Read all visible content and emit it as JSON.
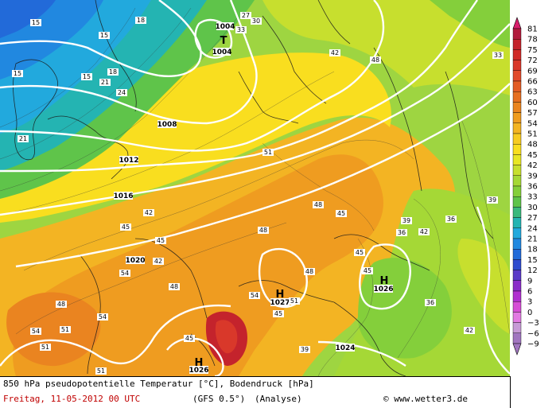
{
  "footer": {
    "title": "850 hPa pseudopotentielle Temperatur [°C], Bodendruck [hPa]",
    "date": "Freitag, 11-05-2012  00 UTC",
    "model": "(GFS 0.5°)",
    "mode": "(Analyse)",
    "credit": "© www.wetter3.de"
  },
  "legend": {
    "values": [
      81,
      78,
      75,
      72,
      69,
      66,
      63,
      60,
      57,
      54,
      51,
      48,
      45,
      42,
      39,
      36,
      33,
      30,
      27,
      24,
      21,
      18,
      15,
      12,
      9,
      6,
      3,
      0,
      -3,
      -6,
      -9
    ],
    "colors": [
      "#d81f6c",
      "#b11b3c",
      "#c4232c",
      "#d02a28",
      "#d9382a",
      "#e14a2b",
      "#e35c26",
      "#e66f22",
      "#ea8420",
      "#ef9c20",
      "#f3b423",
      "#f7cb22",
      "#f9de1f",
      "#e8e624",
      "#c7df2e",
      "#a5d836",
      "#84cf3b",
      "#5fc44a",
      "#3ab97c",
      "#24b4b2",
      "#22a9dd",
      "#2188e0",
      "#226ad9",
      "#2f4ccf",
      "#5a3ac8",
      "#8a2dc9",
      "#b030d0",
      "#d64ed6",
      "#e27ae2",
      "#c79ad6",
      "#a176c0"
    ]
  },
  "isobars": [
    "1004",
    "1004",
    "1008",
    "1012",
    "1016",
    "1020",
    "1024",
    "1026",
    "1027",
    "1026"
  ],
  "highs": [
    "H",
    "H",
    "H"
  ],
  "lows": [
    "T"
  ],
  "temp_labels": [
    "15",
    "15",
    "15",
    "15",
    "18",
    "18",
    "21",
    "21",
    "24",
    "27",
    "30",
    "33",
    "33",
    "42",
    "42",
    "42",
    "45",
    "45",
    "45",
    "45",
    "45",
    "45",
    "48",
    "48",
    "48",
    "48",
    "48",
    "51",
    "51",
    "51",
    "51",
    "51",
    "54",
    "54",
    "54",
    "54",
    "39",
    "39",
    "39",
    "36",
    "36",
    "36",
    "42",
    "42",
    "45",
    "48"
  ]
}
